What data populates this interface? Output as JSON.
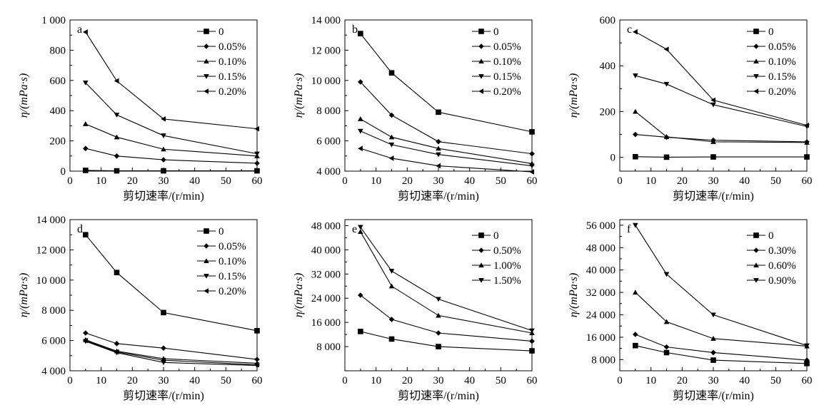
{
  "chart_data": [
    {
      "type": "line",
      "panel_label": "a",
      "xlabel": "剪切速率/(r/min)",
      "ylabel": "η/(mPa·s)",
      "xlim": [
        0,
        60
      ],
      "xticks": [
        0,
        10,
        20,
        30,
        40,
        50,
        60
      ],
      "xtick_labels": [
        "0",
        "10",
        "20",
        "30",
        "40",
        "50",
        "60"
      ],
      "ylim": [
        0,
        1000
      ],
      "yticks": [
        0,
        200,
        400,
        600,
        800,
        1000
      ],
      "ytick_labels": [
        "0",
        "200",
        "400",
        "600",
        "800",
        "1 000"
      ],
      "x": [
        5,
        15,
        30,
        60
      ],
      "grid": false,
      "legend_position": "top-right",
      "series": [
        {
          "name": "0",
          "marker": "square",
          "values": [
            5,
            2,
            2,
            2
          ]
        },
        {
          "name": "0.05%",
          "marker": "diamond",
          "values": [
            150,
            100,
            75,
            52
          ]
        },
        {
          "name": "0.10%",
          "marker": "triangle-up",
          "values": [
            312,
            225,
            145,
            100
          ]
        },
        {
          "name": "0.15%",
          "marker": "triangle-down",
          "values": [
            585,
            372,
            235,
            115
          ]
        },
        {
          "name": "0.20%",
          "marker": "triangle-left",
          "values": [
            920,
            597,
            345,
            280
          ]
        }
      ]
    },
    {
      "type": "line",
      "panel_label": "b",
      "xlabel": "剪切速率/(r/min)",
      "ylabel": "η/(mPa·s)",
      "xlim": [
        0,
        60
      ],
      "xticks": [
        0,
        10,
        20,
        30,
        40,
        50,
        60
      ],
      "xtick_labels": [
        "0",
        "10",
        "20",
        "30",
        "40",
        "50",
        "60"
      ],
      "ylim": [
        4000,
        14000
      ],
      "yticks": [
        4000,
        6000,
        8000,
        10000,
        12000,
        14000
      ],
      "ytick_labels": [
        "4 000",
        "6 000",
        "8 000",
        "10 000",
        "12 000",
        "14 000"
      ],
      "x": [
        5,
        15,
        30,
        60
      ],
      "grid": false,
      "legend_position": "top-right",
      "series": [
        {
          "name": "0",
          "marker": "square",
          "values": [
            13100,
            10500,
            7900,
            6600
          ]
        },
        {
          "name": "0.05%",
          "marker": "diamond",
          "values": [
            9900,
            7700,
            5950,
            5150
          ]
        },
        {
          "name": "0.10%",
          "marker": "triangle-up",
          "values": [
            7450,
            6250,
            5500,
            4500
          ]
        },
        {
          "name": "0.15%",
          "marker": "triangle-down",
          "values": [
            6650,
            5750,
            5100,
            4350
          ]
        },
        {
          "name": "0.20%",
          "marker": "triangle-left",
          "values": [
            5500,
            4850,
            4350,
            3950
          ]
        }
      ]
    },
    {
      "type": "line",
      "panel_label": "c",
      "xlabel": "剪切速率/(r/min)",
      "ylabel": "η/(mPa·s)",
      "xlim": [
        0,
        60
      ],
      "xticks": [
        0,
        10,
        20,
        30,
        40,
        50,
        60
      ],
      "xtick_labels": [
        "0",
        "10",
        "20",
        "30",
        "40",
        "50",
        "60"
      ],
      "ylim": [
        -60,
        600
      ],
      "yticks": [
        0,
        200,
        400,
        600
      ],
      "ytick_labels": [
        "0",
        "200",
        "400",
        "600"
      ],
      "x": [
        5,
        15,
        30,
        60
      ],
      "grid": false,
      "legend_position": "top-right",
      "series": [
        {
          "name": "0",
          "marker": "square",
          "values": [
            3,
            1,
            2,
            2
          ]
        },
        {
          "name": "0.05%",
          "marker": "diamond",
          "values": [
            100,
            88,
            75,
            68
          ]
        },
        {
          "name": "0.10%",
          "marker": "triangle-up",
          "values": [
            200,
            90,
            68,
            65
          ]
        },
        {
          "name": "0.15%",
          "marker": "triangle-down",
          "values": [
            357,
            320,
            230,
            135
          ]
        },
        {
          "name": "0.20%",
          "marker": "triangle-left",
          "values": [
            548,
            472,
            250,
            140
          ]
        }
      ]
    },
    {
      "type": "line",
      "panel_label": "d",
      "xlabel": "剪切速率/(r/min)",
      "ylabel": "η/(mPa·s)",
      "xlim": [
        0,
        60
      ],
      "xticks": [
        0,
        10,
        20,
        30,
        40,
        50,
        60
      ],
      "xtick_labels": [
        "0",
        "10",
        "20",
        "30",
        "40",
        "50",
        "60"
      ],
      "ylim": [
        4000,
        14000
      ],
      "yticks": [
        4000,
        6000,
        8000,
        10000,
        12000,
        14000
      ],
      "ytick_labels": [
        "4 000",
        "6 000",
        "8 000",
        "10 000",
        "12 000",
        "14 000"
      ],
      "x": [
        5,
        15,
        30,
        60
      ],
      "grid": false,
      "legend_position": "top-right",
      "series": [
        {
          "name": "0",
          "marker": "square",
          "values": [
            13000,
            10500,
            7850,
            6650
          ]
        },
        {
          "name": "0.05%",
          "marker": "diamond",
          "values": [
            6500,
            5800,
            5500,
            4750
          ]
        },
        {
          "name": "0.10%",
          "marker": "triangle-up",
          "values": [
            6050,
            5300,
            4800,
            4500
          ]
        },
        {
          "name": "0.15%",
          "marker": "triangle-down",
          "values": [
            5950,
            5200,
            4550,
            4350
          ]
        },
        {
          "name": "0.20%",
          "marker": "triangle-left",
          "values": [
            6000,
            5250,
            4700,
            4400
          ]
        }
      ]
    },
    {
      "type": "line",
      "panel_label": "e",
      "xlabel": "剪切速率/(r/min)",
      "ylabel": "η/(mPa·s)",
      "xlim": [
        0,
        60
      ],
      "xticks": [
        0,
        10,
        20,
        30,
        40,
        50,
        60
      ],
      "xtick_labels": [
        "0",
        "10",
        "20",
        "30",
        "40",
        "50",
        "60"
      ],
      "ylim": [
        0,
        50000
      ],
      "yticks": [
        8000,
        16000,
        24000,
        32000,
        40000,
        48000
      ],
      "ytick_labels": [
        "8 000",
        "16 000",
        "24 000",
        "32 000",
        "40 000",
        "48 000"
      ],
      "x": [
        5,
        15,
        30,
        60
      ],
      "grid": false,
      "legend_position": "top-right",
      "series": [
        {
          "name": "0",
          "marker": "square",
          "values": [
            13000,
            10500,
            8000,
            6600
          ]
        },
        {
          "name": "0.50%",
          "marker": "diamond",
          "values": [
            25000,
            17000,
            12500,
            9800
          ]
        },
        {
          "name": "1.00%",
          "marker": "triangle-up",
          "values": [
            46000,
            28000,
            18300,
            12500
          ]
        },
        {
          "name": "1.50%",
          "marker": "triangle-down",
          "values": [
            47500,
            33000,
            23700,
            13300
          ]
        }
      ]
    },
    {
      "type": "line",
      "panel_label": "f",
      "xlabel": "剪切速率/(r/min)",
      "ylabel": "η/(mPa·s)",
      "xlim": [
        0,
        60
      ],
      "xticks": [
        0,
        10,
        20,
        30,
        40,
        50,
        60
      ],
      "xtick_labels": [
        "0",
        "10",
        "20",
        "30",
        "40",
        "50",
        "60"
      ],
      "ylim": [
        4000,
        58000
      ],
      "yticks": [
        8000,
        16000,
        24000,
        32000,
        40000,
        48000,
        56000
      ],
      "ytick_labels": [
        "8 000",
        "16 000",
        "24 000",
        "32 000",
        "40 000",
        "48 000",
        "56 000"
      ],
      "x": [
        5,
        15,
        30,
        60
      ],
      "grid": false,
      "legend_position": "top-left",
      "series": [
        {
          "name": "0",
          "marker": "square",
          "values": [
            13000,
            10500,
            7800,
            6600
          ]
        },
        {
          "name": "0.30%",
          "marker": "diamond",
          "values": [
            17000,
            12500,
            10500,
            7800
          ]
        },
        {
          "name": "0.60%",
          "marker": "triangle-up",
          "values": [
            32000,
            21500,
            15500,
            12800
          ]
        },
        {
          "name": "0.90%",
          "marker": "triangle-down",
          "values": [
            56000,
            38500,
            24000,
            13000
          ]
        }
      ]
    }
  ]
}
